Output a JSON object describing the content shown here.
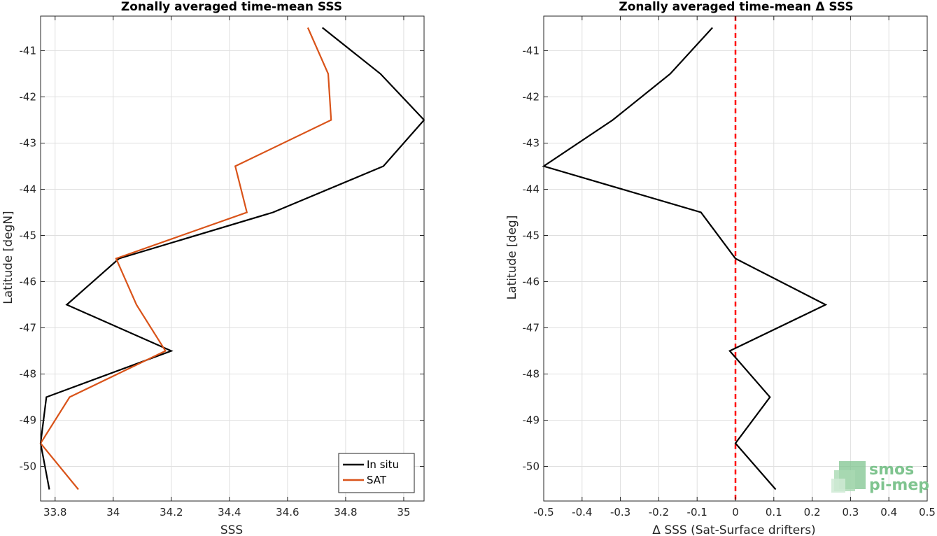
{
  "chart_data": [
    {
      "type": "line",
      "title": "Zonally averaged time-mean SSS",
      "xlabel": "SSS",
      "ylabel": "Latitude [degN]",
      "xlim": [
        33.75,
        35.07
      ],
      "ylim": [
        -50.75,
        -40.25
      ],
      "xticks": [
        33.8,
        34,
        34.2,
        34.4,
        34.6,
        34.8,
        35
      ],
      "yticks": [
        -41,
        -42,
        -43,
        -44,
        -45,
        -46,
        -47,
        -48,
        -49,
        -50
      ],
      "grid": true,
      "legend_position": "bottom-right",
      "series": [
        {
          "name": "In situ",
          "color": "#000000",
          "x": [
            34.72,
            34.92,
            35.07,
            34.93,
            34.55,
            34.02,
            33.84,
            34.2,
            33.77,
            33.75,
            33.78
          ],
          "y": [
            -40.5,
            -41.5,
            -42.5,
            -43.5,
            -44.5,
            -45.5,
            -46.5,
            -47.5,
            -48.5,
            -49.5,
            -50.5
          ]
        },
        {
          "name": "SAT",
          "color": "#d95319",
          "x": [
            34.67,
            34.74,
            34.75,
            34.42,
            34.46,
            34.01,
            34.08,
            34.18,
            33.85,
            33.75,
            33.88
          ],
          "y": [
            -40.5,
            -41.5,
            -42.5,
            -43.5,
            -44.5,
            -45.5,
            -46.5,
            -47.5,
            -48.5,
            -49.5,
            -50.5
          ]
        }
      ]
    },
    {
      "type": "line",
      "title": "Zonally averaged time-mean Δ SSS",
      "xlabel": "Δ SSS (Sat-Surface drifters)",
      "ylabel": "Latitude [deg]",
      "xlim": [
        -0.5,
        0.5
      ],
      "ylim": [
        -50.75,
        -40.25
      ],
      "xticks": [
        -0.5,
        -0.4,
        -0.3,
        -0.2,
        -0.1,
        0,
        0.1,
        0.2,
        0.3,
        0.4,
        0.5
      ],
      "yticks": [
        -41,
        -42,
        -43,
        -44,
        -45,
        -46,
        -47,
        -48,
        -49,
        -50
      ],
      "grid": true,
      "reference_line": {
        "x": 0,
        "color": "#ff0000",
        "style": "dashed"
      },
      "series": [
        {
          "color": "#000000",
          "x": [
            -0.06,
            -0.17,
            -0.32,
            -0.5,
            -0.09,
            0.0,
            0.235,
            -0.015,
            0.09,
            0.0,
            0.105
          ],
          "y": [
            -40.5,
            -41.5,
            -42.5,
            -43.5,
            -44.5,
            -45.5,
            -46.5,
            -47.5,
            -48.5,
            -49.5,
            -50.5
          ]
        }
      ]
    }
  ],
  "logo": {
    "line1": "smos",
    "line2": "pi-mep",
    "color": "#7fc48f"
  }
}
